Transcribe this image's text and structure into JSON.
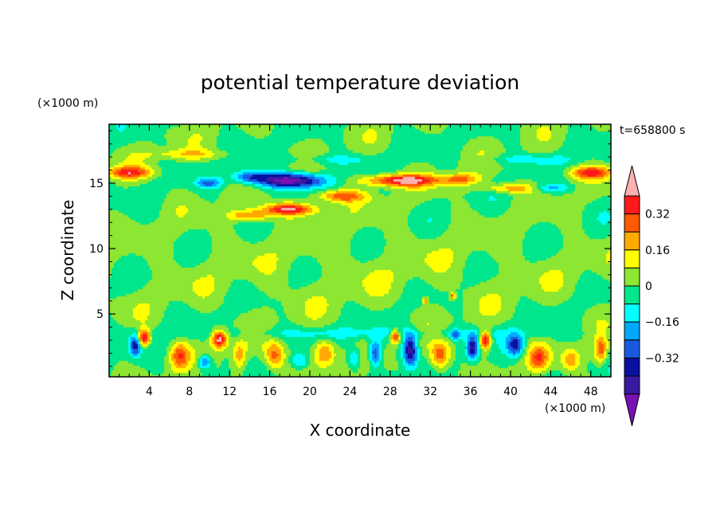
{
  "chart_data": {
    "type": "heatmap",
    "title": "potential temperature deviation",
    "xlabel": "X coordinate",
    "ylabel": "Z coordinate",
    "x_unit_label": "(×1000 m)",
    "y_unit_label": "(×1000 m)",
    "time_label": "t=658800 s",
    "xlim": [
      0,
      50
    ],
    "ylim": [
      0.2,
      19.5
    ],
    "x_ticks": [
      4,
      8,
      12,
      16,
      20,
      24,
      28,
      32,
      36,
      40,
      44,
      48
    ],
    "y_ticks": [
      5,
      10,
      15
    ],
    "colorbar": {
      "levels": [
        -0.48,
        -0.4,
        -0.32,
        -0.24,
        -0.16,
        -0.08,
        0,
        0.08,
        0.16,
        0.24,
        0.32,
        0.4
      ],
      "colors": [
        "#7a10b4",
        "#3a1aa0",
        "#0a10a0",
        "#1a5adf",
        "#00a8ff",
        "#00ffff",
        "#00e68c",
        "#8ce632",
        "#ffff00",
        "#ffaa00",
        "#ff5a00",
        "#ff1a1a",
        "#ffb0b0"
      ],
      "tick_labels": [
        "0.32",
        "0.16",
        "0",
        "-0.16",
        "-0.32"
      ],
      "tick_values": [
        0.32,
        0.16,
        0,
        -0.16,
        -0.32
      ]
    },
    "features": [
      {
        "x": 18,
        "z": 15.2,
        "sx": 3.2,
        "sz": 0.55,
        "amp": -0.55
      },
      {
        "x": 14,
        "z": 15.5,
        "sx": 1.8,
        "sz": 0.5,
        "amp": -0.3
      },
      {
        "x": 10,
        "z": 15.0,
        "sx": 1.2,
        "sz": 0.35,
        "amp": -0.25
      },
      {
        "x": 22,
        "z": 16.8,
        "sx": 6,
        "sz": 0.4,
        "amp": -0.1
      },
      {
        "x": 18,
        "z": 13.0,
        "sx": 2.8,
        "sz": 0.45,
        "amp": 0.42
      },
      {
        "x": 14,
        "z": 12.5,
        "sx": 2.0,
        "sz": 0.4,
        "amp": 0.28
      },
      {
        "x": 23,
        "z": 14.0,
        "sx": 2.5,
        "sz": 0.45,
        "amp": 0.3
      },
      {
        "x": 29,
        "z": 15.2,
        "sx": 3.5,
        "sz": 0.45,
        "amp": 0.45
      },
      {
        "x": 35,
        "z": 15.3,
        "sx": 2.0,
        "sz": 0.4,
        "amp": 0.25
      },
      {
        "x": 2,
        "z": 15.8,
        "sx": 2.2,
        "sz": 0.45,
        "amp": 0.33
      },
      {
        "x": 48,
        "z": 15.8,
        "sx": 2.2,
        "sz": 0.45,
        "amp": 0.33
      },
      {
        "x": 40,
        "z": 14.6,
        "sx": 3.0,
        "sz": 0.35,
        "amp": 0.22
      },
      {
        "x": 44,
        "z": 14.6,
        "sx": 2.0,
        "sz": 0.3,
        "amp": -0.18
      },
      {
        "x": 8,
        "z": 17.2,
        "sx": 4,
        "sz": 0.4,
        "amp": 0.15
      },
      {
        "x": 42,
        "z": 16.8,
        "sx": 4,
        "sz": 0.35,
        "amp": -0.12
      },
      {
        "x": 3.5,
        "z": 3.2,
        "sx": 0.6,
        "sz": 0.6,
        "amp": 0.45
      },
      {
        "x": 2.6,
        "z": 2.6,
        "sx": 0.5,
        "sz": 0.8,
        "amp": -0.35
      },
      {
        "x": 7,
        "z": 1.8,
        "sx": 0.9,
        "sz": 1.0,
        "amp": 0.28
      },
      {
        "x": 9.5,
        "z": 1.3,
        "sx": 0.6,
        "sz": 0.5,
        "amp": -0.3
      },
      {
        "x": 11,
        "z": 3.1,
        "sx": 0.8,
        "sz": 0.7,
        "amp": 0.48
      },
      {
        "x": 13,
        "z": 1.8,
        "sx": 0.6,
        "sz": 1.0,
        "amp": 0.2
      },
      {
        "x": 16.5,
        "z": 1.8,
        "sx": 1.0,
        "sz": 1.1,
        "amp": 0.3
      },
      {
        "x": 21.5,
        "z": 2.0,
        "sx": 1.1,
        "sz": 1.0,
        "amp": 0.3
      },
      {
        "x": 26.5,
        "z": 2.0,
        "sx": 0.6,
        "sz": 1.0,
        "amp": -0.35
      },
      {
        "x": 28.5,
        "z": 3.3,
        "sx": 0.5,
        "sz": 0.5,
        "amp": 0.42
      },
      {
        "x": 30,
        "z": 2.2,
        "sx": 0.7,
        "sz": 1.2,
        "amp": -0.45
      },
      {
        "x": 33,
        "z": 1.8,
        "sx": 1.0,
        "sz": 1.1,
        "amp": 0.32
      },
      {
        "x": 36.2,
        "z": 2.4,
        "sx": 0.6,
        "sz": 0.9,
        "amp": -0.42
      },
      {
        "x": 37.5,
        "z": 3.0,
        "sx": 0.55,
        "sz": 0.7,
        "amp": 0.46
      },
      {
        "x": 40.5,
        "z": 2.6,
        "sx": 0.8,
        "sz": 0.8,
        "amp": -0.35
      },
      {
        "x": 42.8,
        "z": 1.6,
        "sx": 1.0,
        "sz": 0.9,
        "amp": 0.28
      },
      {
        "x": 46,
        "z": 1.5,
        "sx": 0.8,
        "sz": 0.8,
        "amp": 0.22
      },
      {
        "x": 49,
        "z": 2.2,
        "sx": 0.6,
        "sz": 1.0,
        "amp": 0.3
      },
      {
        "x": 19,
        "z": 1.4,
        "sx": 0.8,
        "sz": 0.6,
        "amp": -0.18
      },
      {
        "x": 24.5,
        "z": 1.6,
        "sx": 0.6,
        "sz": 0.8,
        "amp": -0.2
      },
      {
        "x": 34.5,
        "z": 3.4,
        "sx": 0.5,
        "sz": 0.4,
        "amp": -0.22
      },
      {
        "x": 31.5,
        "z": 6.0,
        "sx": 0.25,
        "sz": 0.25,
        "amp": 0.28
      },
      {
        "x": 34.2,
        "z": 6.4,
        "sx": 0.25,
        "sz": 0.25,
        "amp": 0.28
      },
      {
        "x": 25,
        "z": 3.5,
        "sx": 20,
        "sz": 0.5,
        "amp": -0.1
      },
      {
        "x": 25,
        "z": 8.5,
        "sx": 25,
        "sz": 3.5,
        "amp": 0.04
      }
    ]
  }
}
